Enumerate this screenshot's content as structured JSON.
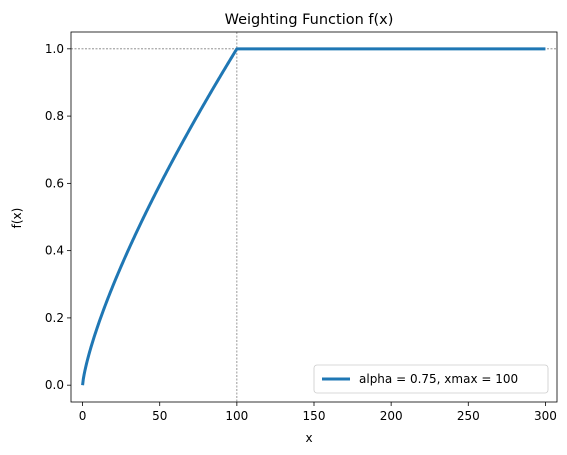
{
  "chart_data": {
    "type": "line",
    "title": "Weighting Function f(x)",
    "xlabel": "x",
    "ylabel": "f(x)",
    "xlim": [
      -7.5,
      307.5
    ],
    "ylim": [
      -0.05,
      1.05
    ],
    "xticks": [
      0,
      50,
      100,
      150,
      200,
      250,
      300
    ],
    "yticks": [
      0.0,
      0.2,
      0.4,
      0.6,
      0.8,
      1.0
    ],
    "xtick_labels": [
      "0",
      "50",
      "100",
      "150",
      "200",
      "250",
      "300"
    ],
    "ytick_labels": [
      "0.0",
      "0.2",
      "0.4",
      "0.6",
      "0.8",
      "1.0"
    ],
    "grid": false,
    "legend_position": "lower-right",
    "reference_lines": {
      "x": 100,
      "y": 1.0,
      "color": "#808080",
      "style": "dotted"
    },
    "series": [
      {
        "name": "alpha = 0.75, xmax = 100",
        "color": "#1f77b4",
        "function": "f(x) = (x/xmax)^alpha for x < xmax, else 1",
        "alpha": 0.75,
        "xmax": 100,
        "x_range": [
          0,
          300
        ],
        "x": [
          0,
          1,
          5,
          10,
          20,
          30,
          40,
          50,
          60,
          70,
          80,
          90,
          100,
          150,
          200,
          250,
          300
        ],
        "y": [
          0.0,
          0.032,
          0.106,
          0.178,
          0.299,
          0.405,
          0.503,
          0.595,
          0.682,
          0.765,
          0.846,
          0.924,
          1.0,
          1.0,
          1.0,
          1.0,
          1.0
        ]
      }
    ]
  }
}
